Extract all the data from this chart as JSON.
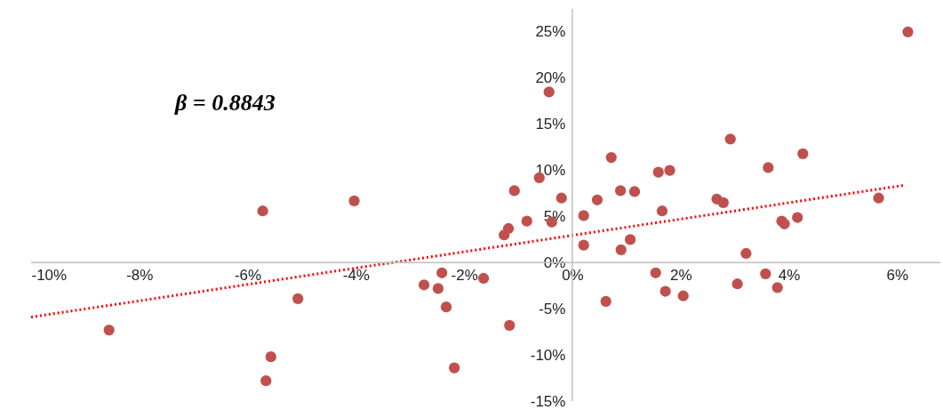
{
  "chart_data": {
    "type": "scatter",
    "annotations": [
      "β = 0.8843"
    ],
    "xlim": [
      -10,
      6.8
    ],
    "ylim": [
      -15,
      27.5
    ],
    "xticks": [
      {
        "value": -10,
        "label": "-10%"
      },
      {
        "value": -8,
        "label": "-8%"
      },
      {
        "value": -6,
        "label": "-6%"
      },
      {
        "value": -4,
        "label": "-4%"
      },
      {
        "value": -2,
        "label": "-2%"
      },
      {
        "value": 0,
        "label": "0%"
      },
      {
        "value": 2,
        "label": "2%"
      },
      {
        "value": 4,
        "label": "4%"
      },
      {
        "value": 6,
        "label": "6%"
      }
    ],
    "yticks": [
      {
        "value": -15,
        "label": "-15%"
      },
      {
        "value": -10,
        "label": "-10%"
      },
      {
        "value": -5,
        "label": "-5%"
      },
      {
        "value": 0,
        "label": "0%"
      },
      {
        "value": 5,
        "label": "5%"
      },
      {
        "value": 10,
        "label": "10%"
      },
      {
        "value": 15,
        "label": "15%"
      },
      {
        "value": 20,
        "label": "20%"
      },
      {
        "value": 25,
        "label": "25%"
      }
    ],
    "grid": false,
    "marker": "circle",
    "series": [
      {
        "color": "#c0504d",
        "x": [
          -8.56,
          -5.72,
          -5.66,
          -5.57,
          -5.07,
          -4.03,
          -2.74,
          -2.48,
          -2.41,
          -2.33,
          -2.18,
          -1.64,
          -1.26,
          -1.18,
          -1.16,
          -1.07,
          -0.84,
          -0.61,
          -0.43,
          -0.38,
          -0.2,
          0.21,
          0.21,
          0.46,
          0.62,
          0.72,
          0.89,
          0.9,
          1.07,
          1.15,
          1.54,
          1.59,
          1.66,
          1.72,
          1.8,
          2.05,
          2.67,
          2.79,
          2.92,
          3.05,
          3.21,
          3.57,
          3.62,
          3.79,
          3.87,
          3.92,
          4.16,
          4.26,
          5.66,
          6.2
        ],
        "values": [
          -7.3,
          5.6,
          -12.8,
          -10.2,
          -3.9,
          6.7,
          -2.4,
          -2.8,
          -1.1,
          -4.8,
          -11.4,
          -1.7,
          3.0,
          3.7,
          -6.8,
          7.8,
          4.5,
          9.2,
          18.5,
          4.4,
          7.0,
          5.1,
          1.9,
          6.8,
          -4.2,
          11.4,
          7.8,
          1.4,
          2.5,
          7.7,
          -1.1,
          9.8,
          5.6,
          -3.1,
          10.0,
          -3.6,
          6.9,
          6.5,
          13.4,
          -2.3,
          1.0,
          -1.2,
          10.3,
          -2.7,
          4.5,
          4.2,
          4.9,
          11.8,
          7.0,
          25.0
        ]
      },
      {
        "type": "line",
        "color": "#ff0000",
        "line_style": "dotted",
        "marker": "none",
        "x": [
          -10,
          6.15
        ],
        "values": [
          -5.9,
          8.4
        ]
      }
    ]
  }
}
